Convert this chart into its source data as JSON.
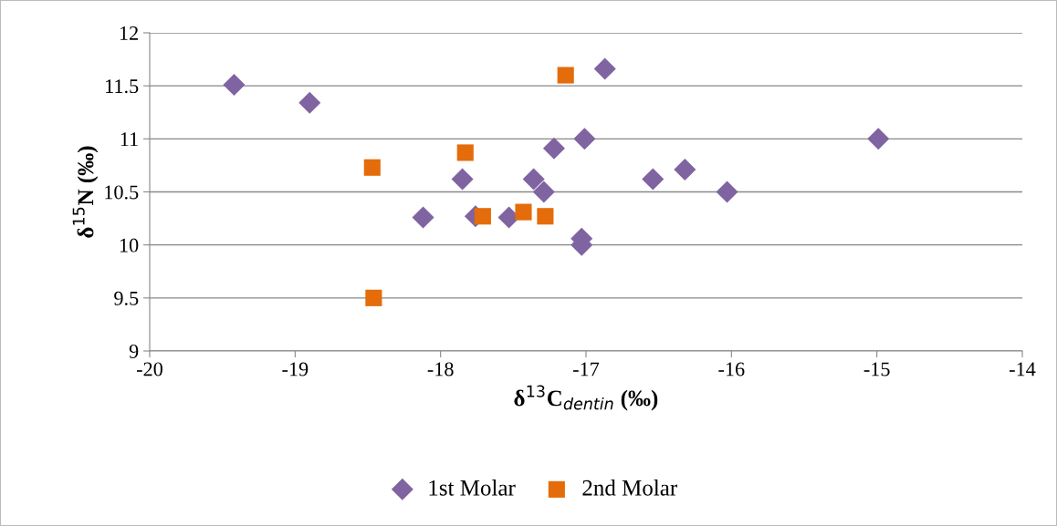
{
  "chart_data": {
    "type": "scatter",
    "xlabel": "δ$^{13}$C$_{dentin}$ (‰)",
    "ylabel": "δ$^{15}$N (‰)",
    "xlim": [
      -20,
      -14
    ],
    "xticks": [
      -20,
      -19,
      -18,
      -17,
      -16,
      -15,
      -14
    ],
    "ylim": [
      9,
      12
    ],
    "yticks": [
      9,
      9.5,
      10,
      10.5,
      11,
      11.5,
      12
    ],
    "grid": "y",
    "legend": "bottom",
    "series": [
      {
        "name": "1st Molar",
        "color": "#8064a2",
        "marker": "diamond",
        "x": [
          -19.42,
          -18.9,
          -16.87,
          -17.22,
          -17.01,
          -17.85,
          -17.36,
          -17.29,
          -18.12,
          -17.76,
          -17.53,
          -17.03,
          -17.03,
          -16.54,
          -16.32,
          -16.03,
          -14.99
        ],
        "values": [
          11.51,
          11.34,
          11.66,
          10.91,
          11.0,
          10.62,
          10.62,
          10.5,
          10.26,
          10.27,
          10.26,
          10.06,
          10.0,
          10.62,
          10.71,
          10.5,
          11.0
        ]
      },
      {
        "name": "2nd Molar",
        "color": "#e46c0a",
        "marker": "square",
        "x": [
          -18.47,
          -17.83,
          -17.14,
          -17.71,
          -17.43,
          -17.28,
          -18.46
        ],
        "values": [
          10.73,
          10.87,
          11.6,
          10.27,
          10.31,
          10.27,
          9.5
        ]
      }
    ]
  }
}
